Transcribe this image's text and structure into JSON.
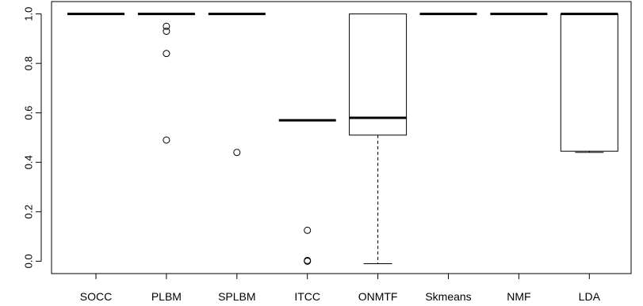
{
  "chart_data": {
    "type": "boxplot",
    "title": "",
    "xlabel": "",
    "ylabel": "",
    "ylim": [
      -0.05,
      1.05
    ],
    "y_ticks": [
      0.0,
      0.2,
      0.4,
      0.6,
      0.8,
      1.0
    ],
    "y_tick_labels": [
      "0.0",
      "0.2",
      "0.4",
      "0.6",
      "0.8",
      "1.0"
    ],
    "grid": false,
    "categories": [
      "SOCC",
      "PLBM",
      "SPLBM",
      "ITCC",
      "ONMTF",
      "Skmeans",
      "NMF",
      "LDA"
    ],
    "boxes": [
      {
        "category": "SOCC",
        "q1": 1.0,
        "median": 1.0,
        "q3": 1.0,
        "whisker_low": 1.0,
        "whisker_high": 1.0,
        "outliers": []
      },
      {
        "category": "PLBM",
        "q1": 1.0,
        "median": 1.0,
        "q3": 1.0,
        "whisker_low": 1.0,
        "whisker_high": 1.0,
        "outliers": [
          0.95,
          0.93,
          0.84,
          0.49
        ]
      },
      {
        "category": "SPLBM",
        "q1": 1.0,
        "median": 1.0,
        "q3": 1.0,
        "whisker_low": 1.0,
        "whisker_high": 1.0,
        "outliers": [
          0.44
        ]
      },
      {
        "category": "ITCC",
        "q1": 0.57,
        "median": 0.57,
        "q3": 0.57,
        "whisker_low": 0.57,
        "whisker_high": 0.57,
        "outliers": [
          0.125,
          0.003,
          0.0
        ]
      },
      {
        "category": "ONMTF",
        "q1": 0.51,
        "median": 0.58,
        "q3": 1.0,
        "whisker_low": -0.01,
        "whisker_high": 1.0,
        "outliers": []
      },
      {
        "category": "Skmeans",
        "q1": 1.0,
        "median": 1.0,
        "q3": 1.0,
        "whisker_low": 1.0,
        "whisker_high": 1.0,
        "outliers": []
      },
      {
        "category": "NMF",
        "q1": 1.0,
        "median": 1.0,
        "q3": 1.0,
        "whisker_low": 1.0,
        "whisker_high": 1.0,
        "outliers": []
      },
      {
        "category": "LDA",
        "q1": 0.445,
        "median": 1.0,
        "q3": 1.0,
        "whisker_low": 0.44,
        "whisker_high": 1.0,
        "outliers": []
      }
    ]
  }
}
